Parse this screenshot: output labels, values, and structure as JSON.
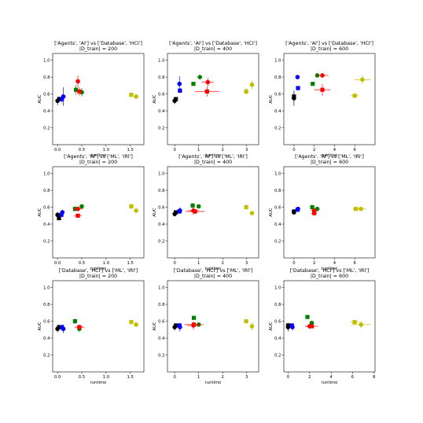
{
  "figure": {
    "colors": {
      "black": "#000000",
      "blue": "#0000ff",
      "green": "#008000",
      "red": "#ff0000",
      "yellow": "#bfbf00"
    }
  },
  "chart_data": [
    {
      "type": "scatter",
      "title_lines": [
        "['Agents', 'AI'] vs ['Database', 'HCI']",
        "|D_train| = 200"
      ],
      "xlabel": "runtime",
      "ylabel": "AUC",
      "xlim": [
        -0.1,
        1.78
      ],
      "ylim": [
        0.0,
        1.08
      ],
      "xticks": [
        0.0,
        0.5,
        1.0,
        1.5
      ],
      "yticks": [
        0.2,
        0.4,
        0.6,
        0.8,
        1.0
      ],
      "points": [
        {
          "color": "black",
          "marker": "circle",
          "x": 0.0,
          "y": 0.52,
          "xerr": 0.01,
          "yerr": 0.05
        },
        {
          "color": "black",
          "marker": "square",
          "x": 0.04,
          "y": 0.54,
          "xerr": 0.01,
          "yerr": 0.03
        },
        {
          "color": "blue",
          "marker": "circle",
          "x": 0.12,
          "y": 0.57,
          "xerr": 0.01,
          "yerr": 0.11
        },
        {
          "color": "blue",
          "marker": "square",
          "x": 0.09,
          "y": 0.54,
          "xerr": 0.01,
          "yerr": 0.04
        },
        {
          "color": "green",
          "marker": "square",
          "x": 0.38,
          "y": 0.65,
          "xerr": 0.04,
          "yerr": 0.06
        },
        {
          "color": "green",
          "marker": "circle",
          "x": 0.5,
          "y": 0.62,
          "xerr": 0.03,
          "yerr": 0.05
        },
        {
          "color": "red",
          "marker": "circle",
          "x": 0.42,
          "y": 0.75,
          "xerr": 0.04,
          "yerr": 0.07
        },
        {
          "color": "red",
          "marker": "square",
          "x": 0.45,
          "y": 0.63,
          "xerr": 0.03,
          "yerr": 0.05
        },
        {
          "color": "yellow",
          "marker": "square",
          "x": 1.52,
          "y": 0.59,
          "xerr": 0.02,
          "yerr": 0.02
        },
        {
          "color": "yellow",
          "marker": "circle",
          "x": 1.62,
          "y": 0.57,
          "xerr": 0.02,
          "yerr": 0.02
        }
      ]
    },
    {
      "type": "scatter",
      "title_lines": [
        "['Agents', 'AI'] vs ['Database', 'HCI']",
        "|D_train| = 400"
      ],
      "xlabel": "runtime",
      "ylabel": "AUC",
      "xlim": [
        -0.3,
        3.5
      ],
      "ylim": [
        0.0,
        1.08
      ],
      "xticks": [
        0,
        1,
        2,
        3
      ],
      "yticks": [
        0.2,
        0.4,
        0.6,
        0.8,
        1.0
      ],
      "points": [
        {
          "color": "black",
          "marker": "circle",
          "x": 0.0,
          "y": 0.52,
          "xerr": 0.02,
          "yerr": 0.04
        },
        {
          "color": "black",
          "marker": "square",
          "x": 0.05,
          "y": 0.54,
          "xerr": 0.02,
          "yerr": 0.02
        },
        {
          "color": "blue",
          "marker": "circle",
          "x": 0.2,
          "y": 0.72,
          "xerr": 0.03,
          "yerr": 0.09
        },
        {
          "color": "blue",
          "marker": "square",
          "x": 0.22,
          "y": 0.64,
          "xerr": 0.03,
          "yerr": 0.03
        },
        {
          "color": "green",
          "marker": "square",
          "x": 0.78,
          "y": 0.72,
          "xerr": 0.06,
          "yerr": 0.02
        },
        {
          "color": "green",
          "marker": "circle",
          "x": 1.05,
          "y": 0.8,
          "xerr": 0.08,
          "yerr": 0.02
        },
        {
          "color": "red",
          "marker": "circle",
          "x": 1.38,
          "y": 0.74,
          "xerr": 0.25,
          "yerr": 0.05
        },
        {
          "color": "red",
          "marker": "square",
          "x": 1.35,
          "y": 0.63,
          "xerr": 0.5,
          "yerr": 0.06
        },
        {
          "color": "yellow",
          "marker": "square",
          "x": 2.98,
          "y": 0.63,
          "xerr": 0.04,
          "yerr": 0.04
        },
        {
          "color": "yellow",
          "marker": "circle",
          "x": 3.22,
          "y": 0.71,
          "xerr": 0.04,
          "yerr": 0.05
        }
      ]
    },
    {
      "type": "scatter",
      "title_lines": [
        "['Agents', 'AI'] vs ['Database', 'HCI']",
        "|D_train| = 600"
      ],
      "xlabel": "runtime",
      "ylabel": "AUC",
      "xlim": [
        -1.0,
        8.0
      ],
      "ylim": [
        0.0,
        1.08
      ],
      "xticks": [
        0,
        2,
        4,
        6
      ],
      "yticks": [
        0.2,
        0.4,
        0.6,
        0.8,
        1.0
      ],
      "points": [
        {
          "color": "black",
          "marker": "circle",
          "x": 0.0,
          "y": 0.55,
          "xerr": 0.05,
          "yerr": 0.09
        },
        {
          "color": "black",
          "marker": "square",
          "x": 0.0,
          "y": 0.57,
          "xerr": 0.05,
          "yerr": 0.05
        },
        {
          "color": "blue",
          "marker": "circle",
          "x": 0.35,
          "y": 0.8,
          "xerr": 0.05,
          "yerr": 0.02
        },
        {
          "color": "blue",
          "marker": "square",
          "x": 0.4,
          "y": 0.67,
          "xerr": 0.05,
          "yerr": 0.02
        },
        {
          "color": "green",
          "marker": "square",
          "x": 1.85,
          "y": 0.72,
          "xerr": 0.1,
          "yerr": 0.02
        },
        {
          "color": "green",
          "marker": "circle",
          "x": 2.3,
          "y": 0.82,
          "xerr": 0.1,
          "yerr": 0.02
        },
        {
          "color": "red",
          "marker": "circle",
          "x": 2.8,
          "y": 0.82,
          "xerr": 0.6,
          "yerr": 0.02
        },
        {
          "color": "red",
          "marker": "square",
          "x": 2.8,
          "y": 0.65,
          "xerr": 0.8,
          "yerr": 0.07
        },
        {
          "color": "yellow",
          "marker": "square",
          "x": 6.0,
          "y": 0.58,
          "xerr": 0.4,
          "yerr": 0.02
        },
        {
          "color": "yellow",
          "marker": "circle",
          "x": 6.75,
          "y": 0.77,
          "xerr": 0.8,
          "yerr": 0.05
        }
      ]
    },
    {
      "type": "scatter",
      "title_lines": [
        "['Agents', 'AI'] vs ['ML', 'IRl']",
        "|D_train| = 200"
      ],
      "xlabel": "runtime",
      "ylabel": "AUC",
      "xlim": [
        -0.1,
        1.78
      ],
      "ylim": [
        0.0,
        1.08
      ],
      "xticks": [
        0.0,
        0.5,
        1.0,
        1.5
      ],
      "yticks": [
        0.2,
        0.4,
        0.6,
        0.8,
        1.0
      ],
      "points": [
        {
          "color": "black",
          "marker": "circle",
          "x": 0.0,
          "y": 0.51,
          "xerr": 0.01,
          "yerr": 0.03
        },
        {
          "color": "black",
          "marker": "square",
          "x": 0.03,
          "y": 0.47,
          "xerr": 0.01,
          "yerr": 0.02
        },
        {
          "color": "blue",
          "marker": "circle",
          "x": 0.1,
          "y": 0.54,
          "xerr": 0.01,
          "yerr": 0.03
        },
        {
          "color": "blue",
          "marker": "square",
          "x": 0.08,
          "y": 0.51,
          "xerr": 0.01,
          "yerr": 0.02
        },
        {
          "color": "green",
          "marker": "square",
          "x": 0.36,
          "y": 0.58,
          "xerr": 0.03,
          "yerr": 0.03
        },
        {
          "color": "green",
          "marker": "circle",
          "x": 0.5,
          "y": 0.61,
          "xerr": 0.03,
          "yerr": 0.02
        },
        {
          "color": "red",
          "marker": "circle",
          "x": 0.42,
          "y": 0.58,
          "xerr": 0.1,
          "yerr": 0.03
        },
        {
          "color": "red",
          "marker": "square",
          "x": 0.42,
          "y": 0.5,
          "xerr": 0.08,
          "yerr": 0.02
        },
        {
          "color": "yellow",
          "marker": "square",
          "x": 1.52,
          "y": 0.61,
          "xerr": 0.02,
          "yerr": 0.03
        },
        {
          "color": "yellow",
          "marker": "circle",
          "x": 1.62,
          "y": 0.56,
          "xerr": 0.02,
          "yerr": 0.02
        }
      ]
    },
    {
      "type": "scatter",
      "title_lines": [
        "['Agents', 'AI'] vs ['ML', 'IRl']",
        "|D_train| = 400"
      ],
      "xlabel": "runtime",
      "ylabel": "AUC",
      "xlim": [
        -0.3,
        3.5
      ],
      "ylim": [
        0.0,
        1.08
      ],
      "xticks": [
        0,
        1,
        2,
        3
      ],
      "yticks": [
        0.2,
        0.4,
        0.6,
        0.8,
        1.0
      ],
      "points": [
        {
          "color": "black",
          "marker": "circle",
          "x": 0.0,
          "y": 0.52,
          "xerr": 0.02,
          "yerr": 0.03
        },
        {
          "color": "black",
          "marker": "square",
          "x": 0.05,
          "y": 0.54,
          "xerr": 0.02,
          "yerr": 0.02
        },
        {
          "color": "blue",
          "marker": "circle",
          "x": 0.22,
          "y": 0.56,
          "xerr": 0.03,
          "yerr": 0.04
        },
        {
          "color": "blue",
          "marker": "square",
          "x": 0.2,
          "y": 0.55,
          "xerr": 0.03,
          "yerr": 0.02
        },
        {
          "color": "green",
          "marker": "square",
          "x": 0.75,
          "y": 0.62,
          "xerr": 0.05,
          "yerr": 0.03
        },
        {
          "color": "green",
          "marker": "circle",
          "x": 1.0,
          "y": 0.61,
          "xerr": 0.08,
          "yerr": 0.02
        },
        {
          "color": "red",
          "marker": "circle",
          "x": 0.78,
          "y": 0.56,
          "xerr": 0.2,
          "yerr": 0.05
        },
        {
          "color": "red",
          "marker": "square",
          "x": 0.85,
          "y": 0.55,
          "xerr": 0.4,
          "yerr": 0.03
        },
        {
          "color": "yellow",
          "marker": "square",
          "x": 2.98,
          "y": 0.6,
          "xerr": 0.04,
          "yerr": 0.03
        },
        {
          "color": "yellow",
          "marker": "circle",
          "x": 3.22,
          "y": 0.53,
          "xerr": 0.04,
          "yerr": 0.02
        }
      ]
    },
    {
      "type": "scatter",
      "title_lines": [
        "['Agents', 'AI'] vs ['ML', 'IRl']",
        "|D_train| = 600"
      ],
      "xlabel": "runtime",
      "ylabel": "AUC",
      "xlim": [
        -1.0,
        8.0
      ],
      "ylim": [
        0.0,
        1.08
      ],
      "xticks": [
        0,
        2,
        4,
        6
      ],
      "yticks": [
        0.2,
        0.4,
        0.6,
        0.8,
        1.0
      ],
      "points": [
        {
          "color": "black",
          "marker": "circle",
          "x": 0.0,
          "y": 0.54,
          "xerr": 0.05,
          "yerr": 0.03
        },
        {
          "color": "black",
          "marker": "square",
          "x": 0.0,
          "y": 0.55,
          "xerr": 0.05,
          "yerr": 0.02
        },
        {
          "color": "blue",
          "marker": "circle",
          "x": 0.4,
          "y": 0.58,
          "xerr": 0.05,
          "yerr": 0.02
        },
        {
          "color": "blue",
          "marker": "square",
          "x": 0.35,
          "y": 0.57,
          "xerr": 0.05,
          "yerr": 0.02
        },
        {
          "color": "green",
          "marker": "square",
          "x": 1.8,
          "y": 0.6,
          "xerr": 0.1,
          "yerr": 0.03
        },
        {
          "color": "green",
          "marker": "circle",
          "x": 2.3,
          "y": 0.58,
          "xerr": 0.1,
          "yerr": 0.02
        },
        {
          "color": "red",
          "marker": "circle",
          "x": 2.0,
          "y": 0.56,
          "xerr": 0.3,
          "yerr": 0.03
        },
        {
          "color": "red",
          "marker": "square",
          "x": 2.0,
          "y": 0.53,
          "xerr": 0.3,
          "yerr": 0.03
        },
        {
          "color": "yellow",
          "marker": "square",
          "x": 6.1,
          "y": 0.58,
          "xerr": 0.3,
          "yerr": 0.02
        },
        {
          "color": "yellow",
          "marker": "circle",
          "x": 6.6,
          "y": 0.58,
          "xerr": 0.5,
          "yerr": 0.01
        }
      ]
    },
    {
      "type": "scatter",
      "title_lines": [
        "['Database', 'HCI'] vs ['ML', 'IRl']",
        "|D_train| = 200"
      ],
      "xlabel": "runtime",
      "ylabel": "AUC",
      "xlim": [
        -0.1,
        1.78
      ],
      "ylim": [
        0.0,
        1.08
      ],
      "xticks": [
        0.0,
        0.5,
        1.0,
        1.5
      ],
      "yticks": [
        0.2,
        0.4,
        0.6,
        0.8,
        1.0
      ],
      "points": [
        {
          "color": "black",
          "marker": "circle",
          "x": 0.0,
          "y": 0.51,
          "xerr": 0.01,
          "yerr": 0.04
        },
        {
          "color": "black",
          "marker": "square",
          "x": 0.03,
          "y": 0.53,
          "xerr": 0.01,
          "yerr": 0.03
        },
        {
          "color": "blue",
          "marker": "circle",
          "x": 0.12,
          "y": 0.51,
          "xerr": 0.01,
          "yerr": 0.05
        },
        {
          "color": "blue",
          "marker": "square",
          "x": 0.09,
          "y": 0.53,
          "xerr": 0.01,
          "yerr": 0.03
        },
        {
          "color": "green",
          "marker": "square",
          "x": 0.36,
          "y": 0.6,
          "xerr": 0.03,
          "yerr": 0.03
        },
        {
          "color": "green",
          "marker": "circle",
          "x": 0.45,
          "y": 0.51,
          "xerr": 0.03,
          "yerr": 0.04
        },
        {
          "color": "red",
          "marker": "circle",
          "x": 0.45,
          "y": 0.53,
          "xerr": 0.08,
          "yerr": 0.03
        },
        {
          "color": "red",
          "marker": "square",
          "x": 0.45,
          "y": 0.53,
          "xerr": 0.1,
          "yerr": 0.02
        },
        {
          "color": "yellow",
          "marker": "square",
          "x": 1.52,
          "y": 0.59,
          "xerr": 0.02,
          "yerr": 0.02
        },
        {
          "color": "yellow",
          "marker": "circle",
          "x": 1.62,
          "y": 0.56,
          "xerr": 0.02,
          "yerr": 0.02
        }
      ]
    },
    {
      "type": "scatter",
      "title_lines": [
        "['Database', 'HCI'] vs ['ML', 'IRl']",
        "|D_train| = 400"
      ],
      "xlabel": "runtime",
      "ylabel": "AUC",
      "xlim": [
        -0.3,
        3.5
      ],
      "ylim": [
        0.0,
        1.08
      ],
      "xticks": [
        0,
        1,
        2,
        3
      ],
      "yticks": [
        0.2,
        0.4,
        0.6,
        0.8,
        1.0
      ],
      "points": [
        {
          "color": "black",
          "marker": "circle",
          "x": 0.0,
          "y": 0.53,
          "xerr": 0.02,
          "yerr": 0.04
        },
        {
          "color": "black",
          "marker": "square",
          "x": 0.05,
          "y": 0.55,
          "xerr": 0.02,
          "yerr": 0.02
        },
        {
          "color": "blue",
          "marker": "circle",
          "x": 0.22,
          "y": 0.53,
          "xerr": 0.03,
          "yerr": 0.05
        },
        {
          "color": "blue",
          "marker": "square",
          "x": 0.2,
          "y": 0.55,
          "xerr": 0.03,
          "yerr": 0.02
        },
        {
          "color": "green",
          "marker": "square",
          "x": 0.8,
          "y": 0.64,
          "xerr": 0.05,
          "yerr": 0.02
        },
        {
          "color": "green",
          "marker": "circle",
          "x": 1.0,
          "y": 0.56,
          "xerr": 0.08,
          "yerr": 0.02
        },
        {
          "color": "red",
          "marker": "circle",
          "x": 0.78,
          "y": 0.55,
          "xerr": 0.25,
          "yerr": 0.05
        },
        {
          "color": "red",
          "marker": "square",
          "x": 0.8,
          "y": 0.56,
          "xerr": 0.4,
          "yerr": 0.02
        },
        {
          "color": "yellow",
          "marker": "square",
          "x": 2.98,
          "y": 0.6,
          "xerr": 0.04,
          "yerr": 0.02
        },
        {
          "color": "yellow",
          "marker": "circle",
          "x": 3.22,
          "y": 0.54,
          "xerr": 0.04,
          "yerr": 0.05
        }
      ]
    },
    {
      "type": "scatter",
      "title_lines": [
        "['Database', 'HCI'] vs ['ML', 'IRl']",
        "|D_train| = 600"
      ],
      "xlabel": "runtime",
      "ylabel": "AUC",
      "xlim": [
        -0.4,
        8.1
      ],
      "ylim": [
        0.0,
        1.08
      ],
      "xticks": [
        0,
        2,
        4,
        6,
        8
      ],
      "yticks": [
        0.2,
        0.4,
        0.6,
        0.8,
        1.0
      ],
      "points": [
        {
          "color": "black",
          "marker": "circle",
          "x": 0.0,
          "y": 0.53,
          "xerr": 0.05,
          "yerr": 0.05
        },
        {
          "color": "black",
          "marker": "square",
          "x": 0.0,
          "y": 0.55,
          "xerr": 0.05,
          "yerr": 0.02
        },
        {
          "color": "blue",
          "marker": "circle",
          "x": 0.4,
          "y": 0.53,
          "xerr": 0.05,
          "yerr": 0.04
        },
        {
          "color": "blue",
          "marker": "square",
          "x": 0.35,
          "y": 0.55,
          "xerr": 0.05,
          "yerr": 0.02
        },
        {
          "color": "green",
          "marker": "square",
          "x": 1.8,
          "y": 0.65,
          "xerr": 0.1,
          "yerr": 0.02
        },
        {
          "color": "green",
          "marker": "circle",
          "x": 2.2,
          "y": 0.58,
          "xerr": 0.1,
          "yerr": 0.02
        },
        {
          "color": "red",
          "marker": "circle",
          "x": 2.0,
          "y": 0.54,
          "xerr": 0.4,
          "yerr": 0.03
        },
        {
          "color": "red",
          "marker": "square",
          "x": 2.2,
          "y": 0.54,
          "xerr": 0.6,
          "yerr": 0.02
        },
        {
          "color": "yellow",
          "marker": "square",
          "x": 6.2,
          "y": 0.59,
          "xerr": 0.4,
          "yerr": 0.02
        },
        {
          "color": "yellow",
          "marker": "circle",
          "x": 6.8,
          "y": 0.56,
          "xerr": 0.9,
          "yerr": 0.04
        }
      ]
    }
  ]
}
